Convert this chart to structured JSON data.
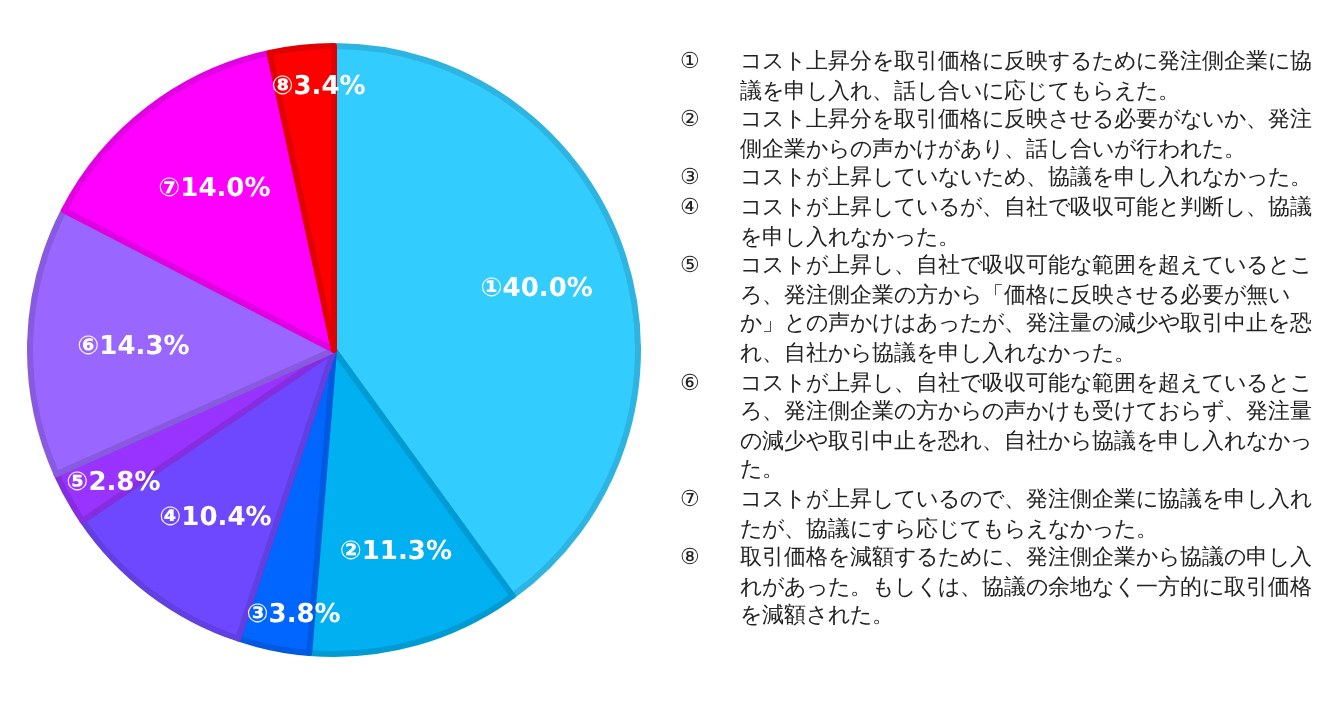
{
  "chart_data": {
    "type": "pie",
    "categories": [
      "①",
      "②",
      "③",
      "④",
      "⑤",
      "⑥",
      "⑦",
      "⑧"
    ],
    "values": [
      40.0,
      11.3,
      3.8,
      10.4,
      2.8,
      14.3,
      14.0,
      3.4
    ],
    "colors": [
      "#33ccff",
      "#00b0f0",
      "#0066ff",
      "#6e48ff",
      "#9933ff",
      "#9966ff",
      "#ff00ff",
      "#ff0000"
    ],
    "value_labels": [
      "40.0%",
      "11.3%",
      "3.8%",
      "10.4%",
      "2.8%",
      "14.3%",
      "14.0%",
      "3.4%"
    ],
    "annotations": [
      "コスト上昇分を取引価格に反映するために発注側企業に協議を申し入れ、話し合いに応じてもらえた。",
      "コスト上昇分を取引価格に反映させる必要がないか、発注側企業からの声かけがあり、話し合いが行われた。",
      "コストが上昇していないため、協議を申し入れなかった。",
      "コストが上昇しているが、自社で吸収可能と判断し、協議を申し入れなかった。",
      "コストが上昇し、自社で吸収可能な範囲を超えているところ、発注側企業の方から「価格に反映させる必要が無いか」との声かけはあったが、発注量の減少や取引中止を恐れ、自社から協議を申し入れなかった。",
      "コストが上昇し、自社で吸収可能な範囲を超えているところ、発注側企業の方からの声かけも受けておらず、発注量の減少や取引中止を恐れ、自社から協議を申し入れなかった。",
      "コストが上昇しているので、発注側企業に協議を申し入れたが、協議にすら応じてもらえなかった。",
      "取引価格を減額するために、発注側企業から協議の申し入れがあった。もしくは、協議の余地なく一方的に取引価格を減額された。"
    ]
  }
}
